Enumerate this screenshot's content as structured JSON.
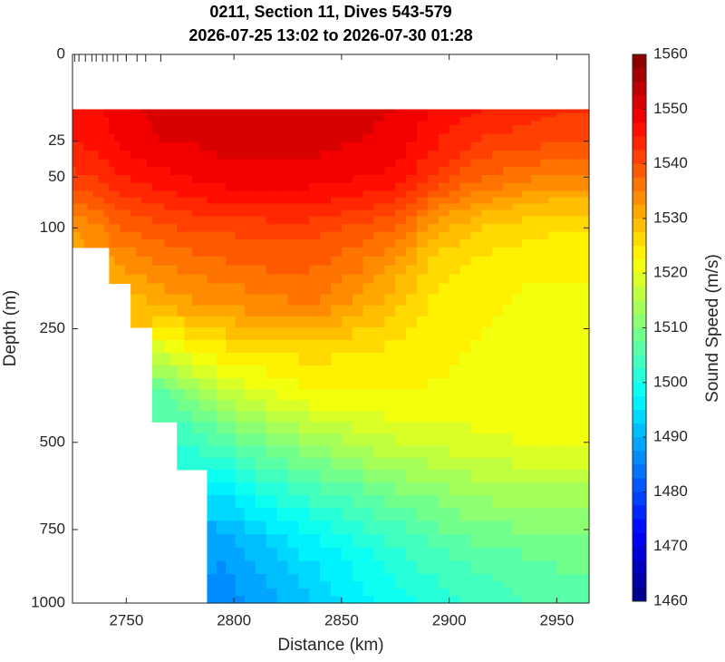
{
  "chart_data": {
    "type": "contourf",
    "title": "0211, Section 11, Dives 543-579",
    "subtitle": "2026-07-25 13:02 to 2026-07-30 01:28",
    "x_label": "Distance (km)",
    "y_label": "Depth (m)",
    "colorbar_label": "Sound Speed (m/s)",
    "colormap": "jet",
    "yscale": "sqrt",
    "yreverse": true,
    "xlim": [
      2725,
      2965
    ],
    "ylim": [
      0,
      1000
    ],
    "xticks": [
      2750,
      2800,
      2850,
      2900,
      2950
    ],
    "yticks": [
      0,
      25,
      50,
      100,
      250,
      500,
      750,
      1000
    ],
    "clim": [
      1460,
      1560
    ],
    "cticks": [
      1460,
      1470,
      1480,
      1490,
      1500,
      1510,
      1520,
      1530,
      1540,
      1550,
      1560
    ],
    "dive_ticks": [
      2726,
      2728,
      2731,
      2734,
      2736,
      2739,
      2741,
      2744,
      2746,
      2750,
      2755,
      2759,
      2766
    ],
    "x": [
      2727,
      2737,
      2747,
      2757,
      2767,
      2780,
      2795,
      2815,
      2835,
      2855,
      2875,
      2895,
      2915,
      2935,
      2950,
      2965
    ],
    "depth": [
      10,
      25,
      50,
      75,
      100,
      150,
      200,
      300,
      400,
      500,
      650,
      800,
      1000
    ],
    "values": [
      [
        1546,
        1547,
        1549,
        1550,
        1551,
        1551,
        1552,
        1552,
        1552,
        1551,
        1550,
        1547,
        1545,
        1544,
        1543,
        1543
      ],
      [
        1545,
        1546,
        1548,
        1549,
        1550,
        1550,
        1551,
        1551,
        1551,
        1550,
        1549,
        1545,
        1542,
        1541,
        1540,
        1540
      ],
      [
        1542,
        1543,
        1545,
        1546,
        1547,
        1548,
        1549,
        1549,
        1549,
        1548,
        1547,
        1542,
        1538,
        1536,
        1535,
        1535
      ],
      [
        1537,
        1539,
        1541,
        1542,
        1543,
        1544,
        1545,
        1545,
        1545,
        1544,
        1542,
        1536,
        1532,
        1530,
        1529,
        1529
      ],
      [
        1532,
        1534,
        1537,
        1538,
        1539,
        1540,
        1540,
        1541,
        1541,
        1539,
        1537,
        1530,
        1527,
        1526,
        1525,
        1525
      ],
      [
        null,
        null,
        1532,
        1534,
        1535,
        1536,
        1537,
        1538,
        1538,
        1536,
        1532,
        1526,
        1524,
        1523,
        1523,
        1523
      ],
      [
        null,
        null,
        null,
        1529,
        1531,
        1532,
        1533,
        1534,
        1535,
        1532,
        1528,
        1524,
        1523,
        1522,
        1522,
        1522
      ],
      [
        null,
        null,
        null,
        null,
        1518,
        1522,
        1524,
        1525,
        1526,
        1525,
        1524,
        1523,
        1522,
        1522,
        1522,
        1521
      ],
      [
        null,
        null,
        null,
        null,
        1505,
        1510,
        1515,
        1519,
        1521,
        1522,
        1522,
        1522,
        1522,
        1521,
        1521,
        1521
      ],
      [
        null,
        null,
        null,
        null,
        null,
        1502,
        1505,
        1509,
        1512,
        1515,
        1517,
        1518,
        1519,
        1520,
        1520,
        1520
      ],
      [
        null,
        null,
        null,
        null,
        null,
        null,
        1495,
        1500,
        1503,
        1506,
        1509,
        1511,
        1513,
        1514,
        1514,
        1514
      ],
      [
        null,
        null,
        null,
        null,
        null,
        null,
        1488,
        1492,
        1496,
        1499,
        1502,
        1505,
        1507,
        1508,
        1509,
        1509
      ],
      [
        null,
        null,
        null,
        null,
        null,
        null,
        1486,
        1489,
        1492,
        1496,
        1499,
        1501,
        1503,
        1505,
        1505,
        1505
      ]
    ]
  }
}
